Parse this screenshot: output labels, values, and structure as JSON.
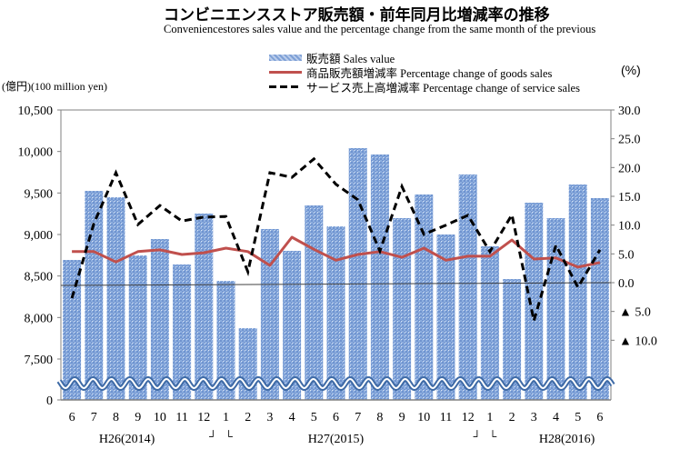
{
  "chart_data": {
    "type": "bar+line",
    "title": "コンビニエンスストア販売額・前年同月比増減率の推移",
    "subtitle": "Conveniencestores sales value and the percentage change from the same month of the previous",
    "ylabel_left": "(億円)(100 million yen)",
    "ylabel_right": "(%)",
    "categories": [
      "6",
      "7",
      "8",
      "9",
      "10",
      "11",
      "12",
      "1",
      "2",
      "3",
      "4",
      "5",
      "6",
      "7",
      "8",
      "9",
      "10",
      "11",
      "12",
      "1",
      "2",
      "3",
      "4",
      "5",
      "6"
    ],
    "year_labels": [
      {
        "label": "H26(2014)",
        "at_index": 2.5
      },
      {
        "label": "H27(2015)",
        "at_index": 12
      },
      {
        "label": "H28(2016)",
        "at_index": 22.5
      }
    ],
    "year_separators": [
      {
        "left_mark": "┘",
        "right_mark": "└",
        "between": [
          6,
          7
        ]
      },
      {
        "left_mark": "┘",
        "right_mark": "└",
        "between": [
          18,
          19
        ]
      }
    ],
    "left_axis": {
      "ticks": [
        0,
        7500,
        8000,
        8500,
        9000,
        9500,
        10000,
        10500
      ],
      "tick_labels": [
        "0",
        "7,500",
        "8,000",
        "8,500",
        "9,000",
        "9,500",
        "10,000",
        "10,500"
      ],
      "ylim": [
        7300,
        10500
      ],
      "axis_break": true
    },
    "right_axis": {
      "ticks": [
        -10,
        -5,
        0,
        5,
        10,
        15,
        20,
        25,
        30
      ],
      "tick_labels": [
        "▲ 10.0",
        "▲ 5.0",
        "0.0",
        "5.0",
        "10.0",
        "15.0",
        "20.0",
        "25.0",
        "30.0"
      ],
      "ylim": [
        -20,
        30
      ]
    },
    "series": [
      {
        "name": "販売額 Sales value",
        "type": "bar",
        "axis": "left",
        "color": "#7ea0d6",
        "values": [
          8693,
          9525,
          9449,
          8748,
          8945,
          8639,
          9252,
          8441,
          7872,
          9066,
          8803,
          9350,
          9098,
          10040,
          9964,
          9197,
          9482,
          9000,
          9723,
          8858,
          8463,
          9383,
          9197,
          9602,
          9438
        ]
      },
      {
        "name": "商品販売額増減率 Percentage change of goods sales",
        "type": "line",
        "axis": "right",
        "color": "#c0504d",
        "values": [
          5.4,
          5.4,
          3.6,
          5.4,
          5.7,
          4.9,
          5.2,
          6.0,
          5.4,
          3.0,
          7.9,
          5.8,
          3.9,
          4.9,
          5.4,
          4.4,
          6.0,
          3.9,
          4.6,
          4.6,
          7.4,
          4.1,
          4.3,
          2.7,
          3.5
        ]
      },
      {
        "name": "サービス売上高増減率 Percentage change of service sales",
        "type": "line-dashed",
        "axis": "right",
        "color": "#000000",
        "values": [
          -2.7,
          10.3,
          19.1,
          10.1,
          13.4,
          10.7,
          11.4,
          11.5,
          1.9,
          19.1,
          18.3,
          21.5,
          17.1,
          14.4,
          5.5,
          16.7,
          8.4,
          10.0,
          11.7,
          5.4,
          11.8,
          -6.6,
          6.5,
          -0.8,
          5.7
        ]
      }
    ],
    "legend_position": "top-center",
    "grid": false
  }
}
